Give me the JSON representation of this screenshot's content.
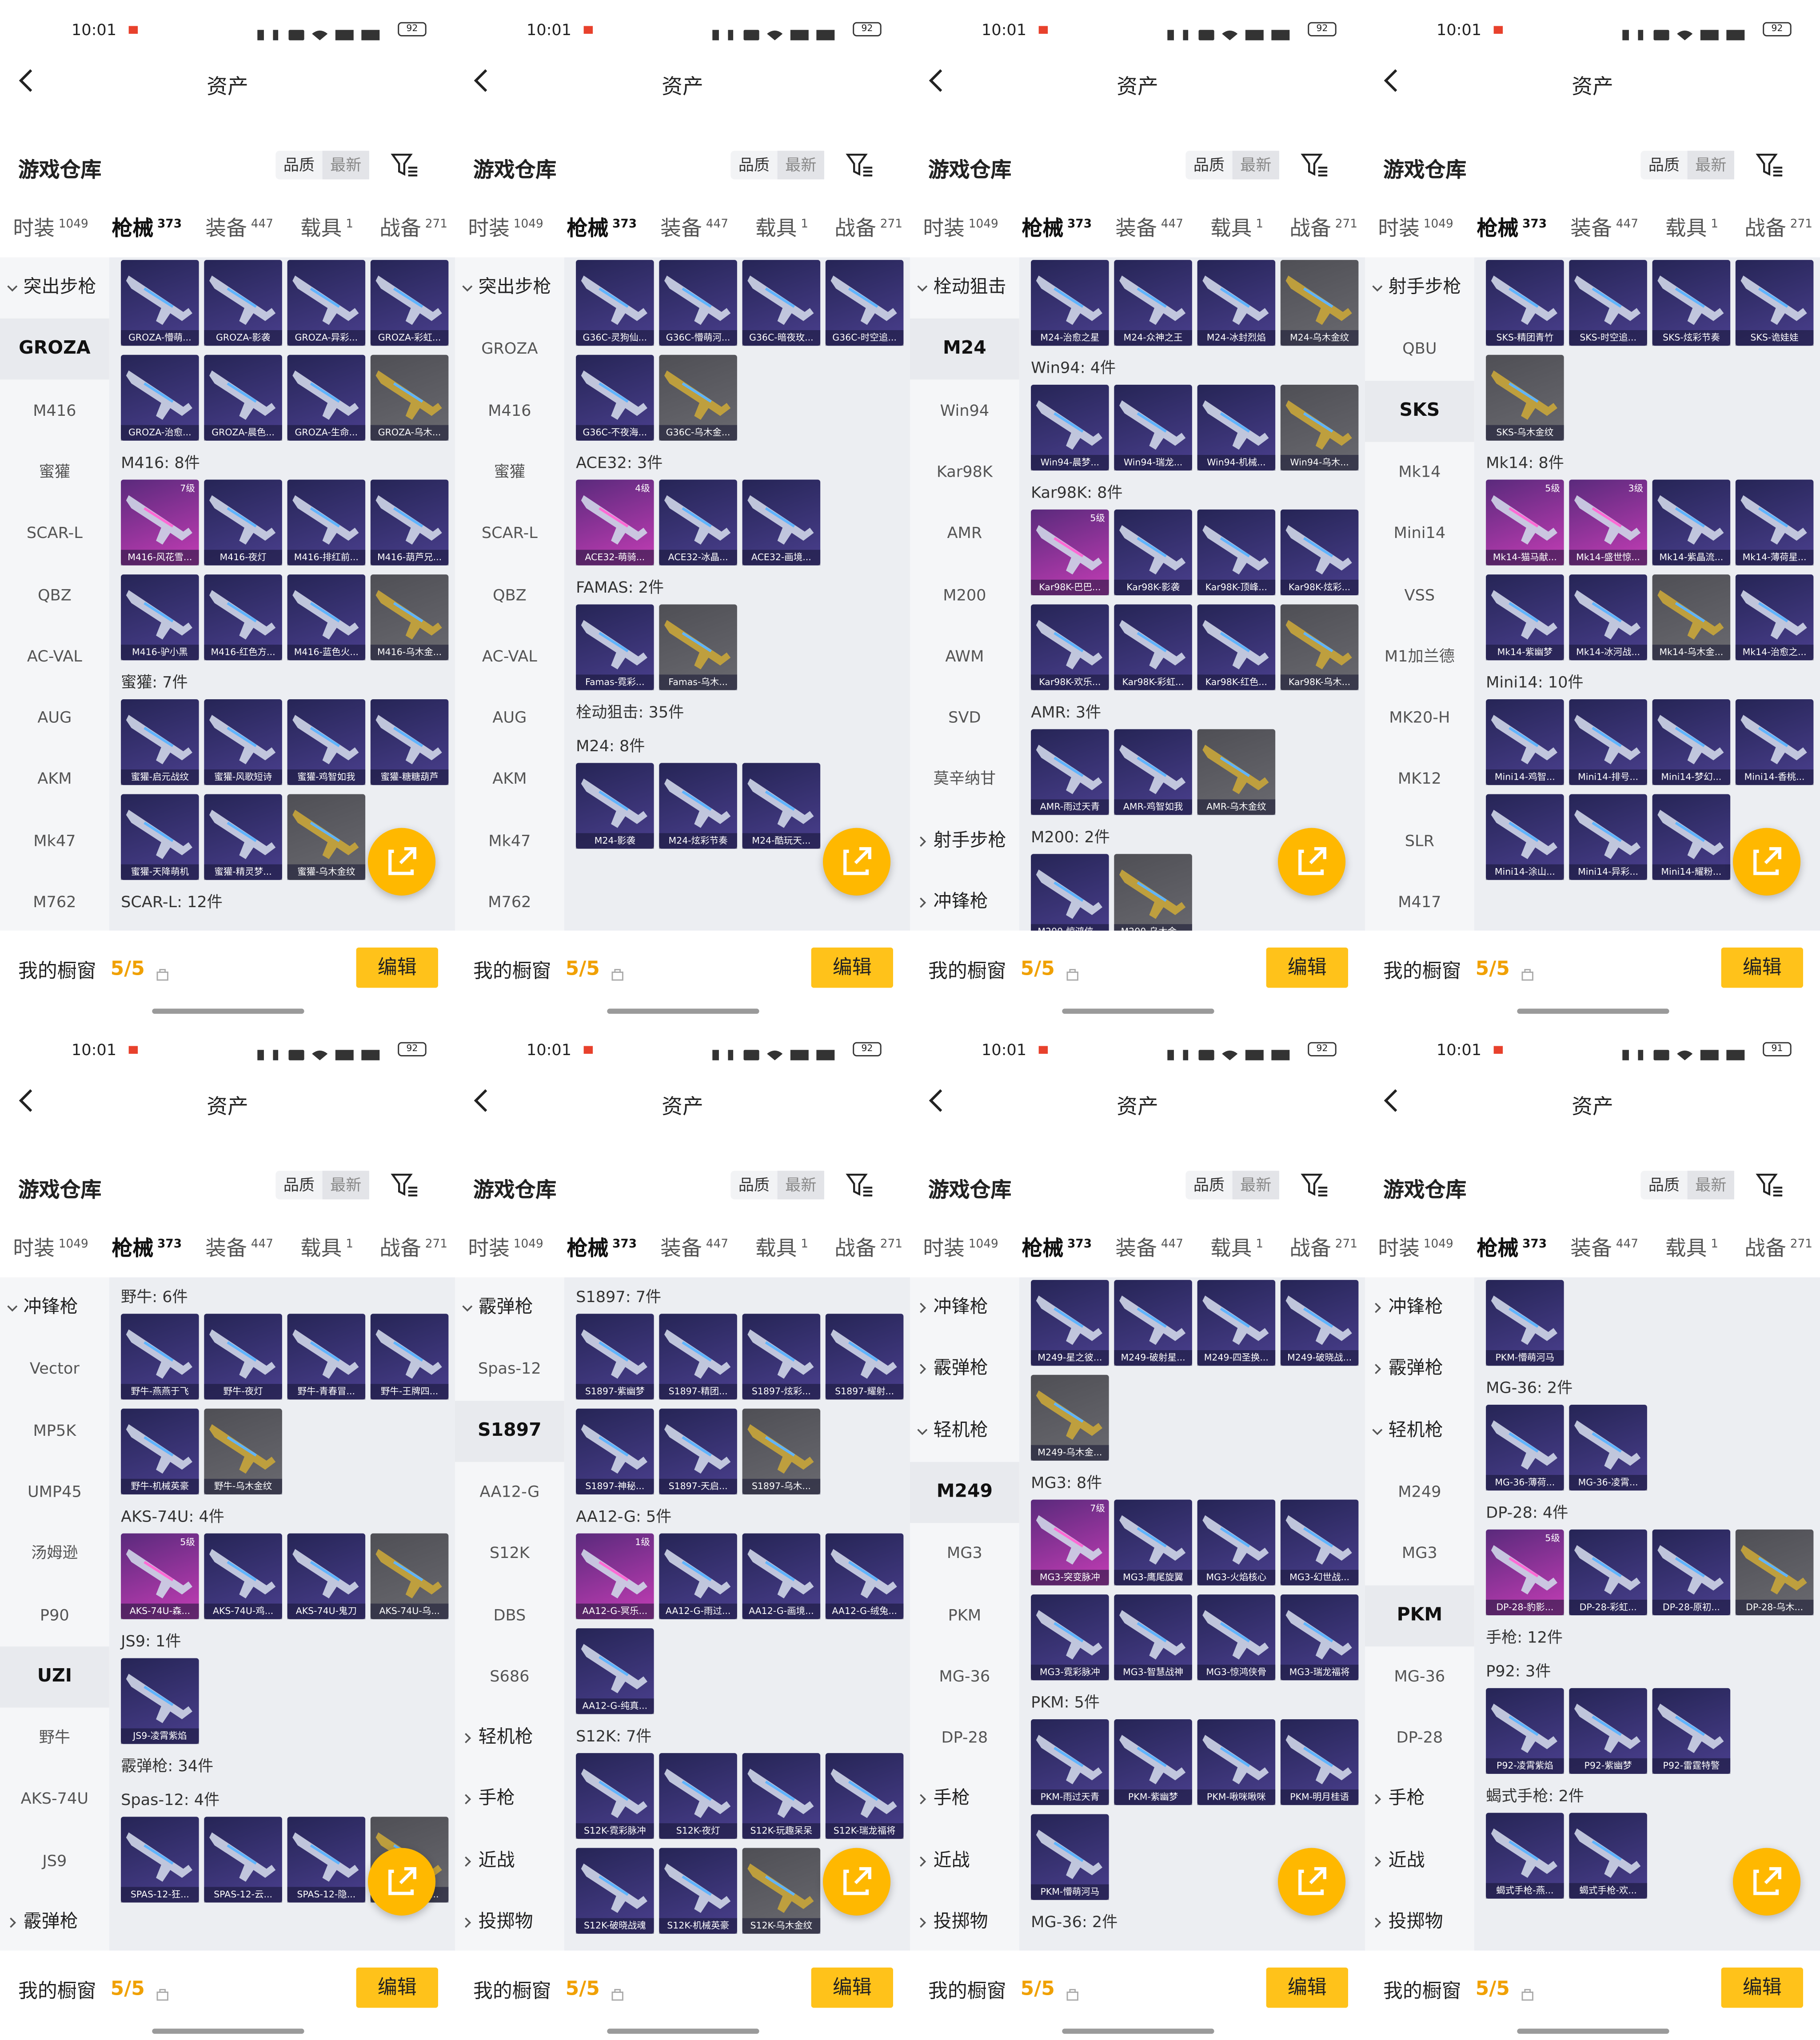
{
  "common": {
    "time": "10:01",
    "title": "资产",
    "section": "游戏仓库",
    "sort": [
      "品质",
      "最新"
    ],
    "tabs": [
      {
        "label": "时装",
        "count": 1049
      },
      {
        "label": "枪械",
        "count": 373
      },
      {
        "label": "装备",
        "count": 447
      },
      {
        "label": "载具",
        "count": 1
      },
      {
        "label": "战备",
        "count": 271
      }
    ],
    "active_tab": 1,
    "showcase": "我的橱窗",
    "showcase_count": "5/5",
    "edit": "编辑"
  },
  "screens": [
    {
      "battery": "92",
      "sidebar": [
        {
          "label": "突出步枪",
          "group": true,
          "expanded": true
        },
        {
          "label": "GROZA",
          "selected": true
        },
        {
          "label": "M416"
        },
        {
          "label": "蜜獾"
        },
        {
          "label": "SCAR-L"
        },
        {
          "label": "QBZ"
        },
        {
          "label": "AC-VAL"
        },
        {
          "label": "AUG"
        },
        {
          "label": "AKM"
        },
        {
          "label": "Mk47"
        },
        {
          "label": "M762"
        }
      ],
      "content": [
        {
          "items": [
            {
              "name": "GROZA-懵萌..."
            },
            {
              "name": "GROZA-影袭"
            },
            {
              "name": "GROZA-异彩..."
            },
            {
              "name": "GROZA-彩虹..."
            },
            {
              "name": "GROZA-治愈..."
            },
            {
              "name": "GROZA-晨色..."
            },
            {
              "name": "GROZA-生命..."
            },
            {
              "name": "GROZA-乌木...",
              "tier": "gold"
            }
          ]
        },
        {
          "label": "M416: 8件"
        },
        {
          "items": [
            {
              "name": "M416-风花雪...",
              "tier": "pink",
              "level": "7级"
            },
            {
              "name": "M416-夜灯"
            },
            {
              "name": "M416-排红前..."
            },
            {
              "name": "M416-葫芦兄..."
            },
            {
              "name": "M416-驴小黑"
            },
            {
              "name": "M416-红色方..."
            },
            {
              "name": "M416-蓝色火..."
            },
            {
              "name": "M416-乌木金...",
              "tier": "gold"
            }
          ]
        },
        {
          "label": "蜜獾: 7件"
        },
        {
          "items": [
            {
              "name": "蜜獾-启元战纹"
            },
            {
              "name": "蜜獾-风歌短诗"
            },
            {
              "name": "蜜獾-鸡智如我"
            },
            {
              "name": "蜜獾-糖糖葫芦"
            },
            {
              "name": "蜜獾-天降萌机"
            },
            {
              "name": "蜜獾-精灵梦..."
            },
            {
              "name": "蜜獾-乌木金纹",
              "tier": "gold"
            }
          ]
        },
        {
          "label": "SCAR-L: 12件"
        }
      ]
    },
    {
      "battery": "92",
      "sidebar": [
        {
          "label": "突出步枪",
          "group": true,
          "expanded": true
        },
        {
          "label": "GROZA"
        },
        {
          "label": "M416"
        },
        {
          "label": "蜜獾"
        },
        {
          "label": "SCAR-L"
        },
        {
          "label": "QBZ"
        },
        {
          "label": "AC-VAL"
        },
        {
          "label": "AUG"
        },
        {
          "label": "AKM"
        },
        {
          "label": "Mk47"
        },
        {
          "label": "M762"
        }
      ],
      "content": [
        {
          "items": [
            {
              "name": "G36C-灵狗仙..."
            },
            {
              "name": "G36C-懵萌河..."
            },
            {
              "name": "G36C-暗夜玫..."
            },
            {
              "name": "G36C-时空追..."
            },
            {
              "name": "G36C-不夜海..."
            },
            {
              "name": "G36C-乌木金...",
              "tier": "gold"
            }
          ]
        },
        {
          "label": "ACE32: 3件"
        },
        {
          "items": [
            {
              "name": "ACE32-萌骑...",
              "tier": "pink",
              "level": "4级"
            },
            {
              "name": "ACE32-冰晶..."
            },
            {
              "name": "ACE32-画境..."
            }
          ]
        },
        {
          "label": "FAMAS: 2件"
        },
        {
          "items": [
            {
              "name": "Famas-霓彩..."
            },
            {
              "name": "Famas-乌木...",
              "tier": "gold"
            }
          ]
        },
        {
          "label": "栓动狙击: 35件"
        },
        {
          "label": "M24: 8件"
        },
        {
          "items": [
            {
              "name": "M24-影袭"
            },
            {
              "name": "M24-炫彩节奏"
            },
            {
              "name": "M24-酷玩天..."
            }
          ]
        }
      ]
    },
    {
      "battery": "92",
      "sidebar": [
        {
          "label": "栓动狙击",
          "group": true,
          "expanded": true
        },
        {
          "label": "M24",
          "selected": true
        },
        {
          "label": "Win94"
        },
        {
          "label": "Kar98K"
        },
        {
          "label": "AMR"
        },
        {
          "label": "M200"
        },
        {
          "label": "AWM"
        },
        {
          "label": "SVD"
        },
        {
          "label": "莫辛纳甘"
        },
        {
          "label": "射手步枪",
          "group": true
        },
        {
          "label": "冲锋枪",
          "group": true
        }
      ],
      "content": [
        {
          "items": [
            {
              "name": "M24-治愈之星"
            },
            {
              "name": "M24-众神之王"
            },
            {
              "name": "M24-冰封烈焰"
            },
            {
              "name": "M24-乌木金纹",
              "tier": "gold"
            }
          ]
        },
        {
          "label": "Win94: 4件"
        },
        {
          "items": [
            {
              "name": "Win94-晨梦..."
            },
            {
              "name": "Win94-瑞龙..."
            },
            {
              "name": "Win94-机械..."
            },
            {
              "name": "Win94-乌木...",
              "tier": "gold"
            }
          ]
        },
        {
          "label": "Kar98K: 8件"
        },
        {
          "items": [
            {
              "name": "Kar98K-巴巴...",
              "tier": "pink",
              "level": "5级"
            },
            {
              "name": "Kar98K-影袭"
            },
            {
              "name": "Kar98K-顶峰..."
            },
            {
              "name": "Kar98K-炫彩..."
            },
            {
              "name": "Kar98K-欢乐..."
            },
            {
              "name": "Kar98K-彩虹..."
            },
            {
              "name": "Kar98K-红色..."
            },
            {
              "name": "Kar98K-乌木...",
              "tier": "gold"
            }
          ]
        },
        {
          "label": "AMR: 3件"
        },
        {
          "items": [
            {
              "name": "AMR-雨过天青"
            },
            {
              "name": "AMR-鸡智如我"
            },
            {
              "name": "AMR-乌木金纹",
              "tier": "gold"
            }
          ]
        },
        {
          "label": "M200: 2件"
        },
        {
          "items": [
            {
              "name": "M200-惊鸿侠..."
            },
            {
              "name": "M200-乌木金...",
              "tier": "gold"
            }
          ]
        }
      ]
    },
    {
      "battery": "92",
      "sidebar": [
        {
          "label": "射手步枪",
          "group": true,
          "expanded": true
        },
        {
          "label": "QBU"
        },
        {
          "label": "SKS",
          "selected": true
        },
        {
          "label": "Mk14"
        },
        {
          "label": "Mini14"
        },
        {
          "label": "VSS"
        },
        {
          "label": "M1加兰德"
        },
        {
          "label": "MK20-H"
        },
        {
          "label": "MK12"
        },
        {
          "label": "SLR"
        },
        {
          "label": "M417"
        }
      ],
      "content": [
        {
          "items": [
            {
              "name": "SKS-精团青竹"
            },
            {
              "name": "SKS-时空追..."
            },
            {
              "name": "SKS-炫彩节奏"
            },
            {
              "name": "SKS-诡娃娃"
            },
            {
              "name": "SKS-乌木金纹",
              "tier": "gold"
            }
          ]
        },
        {
          "label": "Mk14: 8件"
        },
        {
          "items": [
            {
              "name": "Mk14-猫马献...",
              "tier": "pink",
              "level": "5级"
            },
            {
              "name": "Mk14-盛世惊...",
              "tier": "pink",
              "level": "3级"
            },
            {
              "name": "Mk14-紫晶流..."
            },
            {
              "name": "Mk14-薄荷星..."
            },
            {
              "name": "Mk14-紫幽梦"
            },
            {
              "name": "Mk14-冰河战..."
            },
            {
              "name": "Mk14-乌木金...",
              "tier": "gold"
            },
            {
              "name": "Mk14-治愈之..."
            }
          ]
        },
        {
          "label": "Mini14: 10件"
        },
        {
          "items": [
            {
              "name": "Mini14-鸡智..."
            },
            {
              "name": "Mini14-排号..."
            },
            {
              "name": "Mini14-梦幻..."
            },
            {
              "name": "Mini14-香桃..."
            },
            {
              "name": "Mini14-涂山..."
            },
            {
              "name": "Mini14-异彩..."
            },
            {
              "name": "Mini14-耀粉..."
            }
          ]
        }
      ]
    },
    {
      "battery": "92",
      "sidebar": [
        {
          "label": "冲锋枪",
          "group": true,
          "expanded": true
        },
        {
          "label": "Vector"
        },
        {
          "label": "MP5K"
        },
        {
          "label": "UMP45"
        },
        {
          "label": "汤姆逊"
        },
        {
          "label": "P90"
        },
        {
          "label": "UZI",
          "selected": true
        },
        {
          "label": "野牛"
        },
        {
          "label": "AKS-74U"
        },
        {
          "label": "JS9"
        },
        {
          "label": "霰弹枪",
          "group": true
        }
      ],
      "content": [
        {
          "label": "野牛: 6件"
        },
        {
          "items": [
            {
              "name": "野牛-燕燕于飞"
            },
            {
              "name": "野牛-夜灯"
            },
            {
              "name": "野牛-青春冒..."
            },
            {
              "name": "野牛-王牌四..."
            },
            {
              "name": "野牛-机械英豪"
            },
            {
              "name": "野牛-乌木金纹",
              "tier": "gold"
            }
          ]
        },
        {
          "label": "AKS-74U: 4件"
        },
        {
          "items": [
            {
              "name": "AKS-74U-森...",
              "tier": "pink",
              "level": "5级"
            },
            {
              "name": "AKS-74U-鸡..."
            },
            {
              "name": "AKS-74U-鬼刀"
            },
            {
              "name": "AKS-74U-乌...",
              "tier": "gold"
            }
          ]
        },
        {
          "label": "JS9: 1件"
        },
        {
          "items": [
            {
              "name": "JS9-凌霄紫焰"
            }
          ]
        },
        {
          "label": "霰弹枪: 34件"
        },
        {
          "label": "Spas-12: 4件"
        },
        {
          "items": [
            {
              "name": "SPAS-12-狂..."
            },
            {
              "name": "SPAS-12-云..."
            },
            {
              "name": "SPAS-12-隐..."
            },
            {
              "name": "SPAS-12-乌...",
              "tier": "gold"
            }
          ]
        }
      ]
    },
    {
      "battery": "92",
      "sidebar": [
        {
          "label": "霰弹枪",
          "group": true,
          "expanded": true
        },
        {
          "label": "Spas-12"
        },
        {
          "label": "S1897",
          "selected": true
        },
        {
          "label": "AA12-G"
        },
        {
          "label": "S12K"
        },
        {
          "label": "DBS"
        },
        {
          "label": "S686"
        },
        {
          "label": "轻机枪",
          "group": true
        },
        {
          "label": "手枪",
          "group": true
        },
        {
          "label": "近战",
          "group": true
        },
        {
          "label": "投掷物",
          "group": true
        }
      ],
      "content": [
        {
          "label": "S1897: 7件"
        },
        {
          "items": [
            {
              "name": "S1897-紫幽梦"
            },
            {
              "name": "S1897-精团..."
            },
            {
              "name": "S1897-炫彩..."
            },
            {
              "name": "S1897-耀射..."
            },
            {
              "name": "S1897-神秘..."
            },
            {
              "name": "S1897-天启..."
            },
            {
              "name": "S1897-乌木...",
              "tier": "gold"
            }
          ]
        },
        {
          "label": "AA12-G: 5件"
        },
        {
          "items": [
            {
              "name": "AA12-G-冥乐...",
              "tier": "pink",
              "level": "1级"
            },
            {
              "name": "AA12-G-雨过..."
            },
            {
              "name": "AA12-G-画境..."
            },
            {
              "name": "AA12-G-绒兔..."
            },
            {
              "name": "AA12-G-纯真..."
            }
          ]
        },
        {
          "label": "S12K: 7件"
        },
        {
          "items": [
            {
              "name": "S12K-霓彩脉冲"
            },
            {
              "name": "S12K-夜灯"
            },
            {
              "name": "S12K-玩趣呆呆"
            },
            {
              "name": "S12K-瑞龙福将"
            },
            {
              "name": "S12K-破晓战魂"
            },
            {
              "name": "S12K-机械英豪"
            },
            {
              "name": "S12K-乌木金纹",
              "tier": "gold"
            }
          ]
        }
      ]
    },
    {
      "battery": "92",
      "sidebar": [
        {
          "label": "冲锋枪",
          "group": true
        },
        {
          "label": "霰弹枪",
          "group": true
        },
        {
          "label": "轻机枪",
          "group": true,
          "expanded": true
        },
        {
          "label": "M249",
          "selected": true
        },
        {
          "label": "MG3"
        },
        {
          "label": "PKM"
        },
        {
          "label": "MG-36"
        },
        {
          "label": "DP-28"
        },
        {
          "label": "手枪",
          "group": true
        },
        {
          "label": "近战",
          "group": true
        },
        {
          "label": "投掷物",
          "group": true
        }
      ],
      "content": [
        {
          "items": [
            {
              "name": "M249-星之彼..."
            },
            {
              "name": "M249-破射星..."
            },
            {
              "name": "M249-四圣换..."
            },
            {
              "name": "M249-破晓战..."
            },
            {
              "name": "M249-乌木金...",
              "tier": "gold"
            }
          ]
        },
        {
          "label": "MG3: 8件"
        },
        {
          "items": [
            {
              "name": "MG3-突变脉冲",
              "tier": "pink",
              "level": "7级"
            },
            {
              "name": "MG3-鹰尾旋翼"
            },
            {
              "name": "MG3-火焰核心"
            },
            {
              "name": "MG3-幻世战..."
            },
            {
              "name": "MG3-霓彩脉冲"
            },
            {
              "name": "MG3-智慧战神"
            },
            {
              "name": "MG3-惊鸿侠骨"
            },
            {
              "name": "MG3-瑞龙福将"
            }
          ]
        },
        {
          "label": "PKM: 5件"
        },
        {
          "items": [
            {
              "name": "PKM-雨过天青"
            },
            {
              "name": "PKM-紫幽梦"
            },
            {
              "name": "PKM-啾咪啾咪"
            },
            {
              "name": "PKM-明月桂语"
            },
            {
              "name": "PKM-懵萌河马"
            }
          ]
        },
        {
          "label": "MG-36: 2件"
        }
      ]
    },
    {
      "battery": "91",
      "sidebar": [
        {
          "label": "冲锋枪",
          "group": true
        },
        {
          "label": "霰弹枪",
          "group": true
        },
        {
          "label": "轻机枪",
          "group": true,
          "expanded": true
        },
        {
          "label": "M249"
        },
        {
          "label": "MG3"
        },
        {
          "label": "PKM",
          "selected": true
        },
        {
          "label": "MG-36"
        },
        {
          "label": "DP-28"
        },
        {
          "label": "手枪",
          "group": true
        },
        {
          "label": "近战",
          "group": true
        },
        {
          "label": "投掷物",
          "group": true
        }
      ],
      "content": [
        {
          "items": [
            {
              "name": "PKM-懵萌河马"
            }
          ]
        },
        {
          "label": "MG-36: 2件"
        },
        {
          "items": [
            {
              "name": "MG-36-薄荷..."
            },
            {
              "name": "MG-36-凌霄..."
            }
          ]
        },
        {
          "label": "DP-28: 4件"
        },
        {
          "items": [
            {
              "name": "DP-28-豹影...",
              "tier": "pink",
              "level": "5级"
            },
            {
              "name": "DP-28-彩虹..."
            },
            {
              "name": "DP-28-原初..."
            },
            {
              "name": "DP-28-乌木...",
              "tier": "gold"
            }
          ]
        },
        {
          "label": "手枪: 12件"
        },
        {
          "label": "P92: 3件"
        },
        {
          "items": [
            {
              "name": "P92-凌霄紫焰"
            },
            {
              "name": "P92-紫幽梦"
            },
            {
              "name": "P92-雷霆特警"
            }
          ]
        },
        {
          "label": "蝎式手枪: 2件"
        },
        {
          "items": [
            {
              "name": "蝎式手枪-燕..."
            },
            {
              "name": "蝎式手枪-欢..."
            }
          ]
        }
      ]
    }
  ]
}
